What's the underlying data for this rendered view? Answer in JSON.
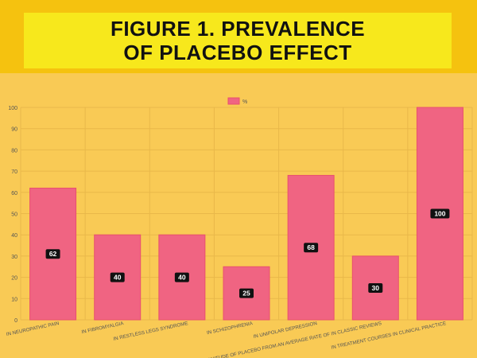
{
  "title": "FIGURE 1. PREVALENCE OF PLACEBO EFFECT",
  "chart_data": {
    "type": "bar",
    "title": "FIGURE 1. PREVALENCE OF PLACEBO EFFECT",
    "categories": [
      "IN NEUROPATHIC PAIN",
      "IN FIBROMYALGIA",
      "IN RESTLESS LEGS SYNDROME",
      "IN SCHIZOPHRENIA",
      "IN UNIPOLAR DEPRESSION",
      "MAGNITUDE OF PLACEBO FROM AN AVERAGE RATE OF IN CLASSIC REVIEWS",
      "IN TREATMENT COURSES IN CLINICAL PRACTICE"
    ],
    "series": [
      {
        "name": "%",
        "values": [
          62,
          40,
          40,
          25,
          68,
          30,
          100
        ]
      }
    ],
    "ylim": [
      0,
      100
    ],
    "yticks": [
      0,
      10,
      20,
      30,
      40,
      50,
      60,
      70,
      80,
      90,
      100
    ],
    "legend": "top-center",
    "grid": true,
    "colors": {
      "bar": "#f06482",
      "bar_stroke": "#e8506f",
      "label_bg": "#111111",
      "label_text": "#ffffff"
    }
  }
}
